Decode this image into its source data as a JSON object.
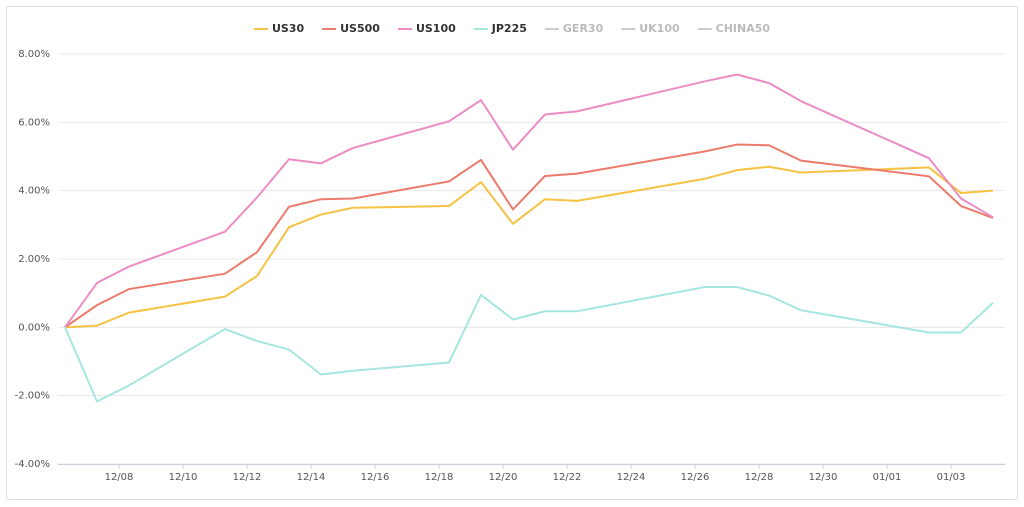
{
  "chart_data": {
    "type": "line",
    "x": [
      "12/06",
      "12/07",
      "12/08",
      "12/11",
      "12/12",
      "12/13",
      "12/14",
      "12/15",
      "12/18",
      "12/19",
      "12/20",
      "12/21",
      "12/22",
      "12/26",
      "12/27",
      "12/28",
      "12/29",
      "01/02",
      "01/03",
      "01/04"
    ],
    "series": [
      {
        "name": "US30",
        "color": "#f5c242",
        "values": [
          0,
          0.05,
          0.43,
          0.9,
          1.5,
          2.93,
          3.3,
          3.5,
          3.55,
          4.25,
          3.03,
          3.75,
          3.7,
          4.35,
          4.6,
          4.7,
          4.53,
          4.68,
          3.93,
          4.0
        ]
      },
      {
        "name": "US500",
        "color": "#ec7a6b",
        "values": [
          0,
          0.65,
          1.12,
          1.57,
          2.2,
          3.53,
          3.75,
          3.77,
          4.27,
          4.9,
          3.45,
          4.43,
          4.5,
          5.15,
          5.35,
          5.33,
          4.88,
          4.42,
          3.55,
          3.2
        ]
      },
      {
        "name": "US100",
        "color": "#ec8cc4",
        "values": [
          0,
          1.3,
          1.78,
          2.8,
          3.8,
          4.92,
          4.8,
          5.25,
          6.03,
          6.65,
          5.2,
          6.23,
          6.32,
          7.2,
          7.4,
          7.15,
          6.62,
          4.95,
          3.77,
          3.22
        ]
      },
      {
        "name": "JP225",
        "color": "#a6e6df",
        "values": [
          0,
          -2.17,
          -1.7,
          -0.05,
          -0.4,
          -0.65,
          -1.38,
          -1.27,
          -1.03,
          0.95,
          0.23,
          0.47,
          0.47,
          1.18,
          1.18,
          0.93,
          0.5,
          -0.15,
          -0.15,
          0.72
        ]
      },
      {
        "name": "GER30",
        "color": "#cccccc",
        "hidden": true,
        "values": [
          null,
          null,
          null,
          null,
          null,
          null,
          null,
          null,
          null,
          null,
          null,
          null,
          null,
          null,
          null,
          null,
          null,
          null,
          null,
          null
        ]
      },
      {
        "name": "UK100",
        "color": "#cccccc",
        "hidden": true,
        "values": [
          null,
          null,
          null,
          null,
          null,
          null,
          null,
          null,
          null,
          null,
          null,
          null,
          null,
          null,
          null,
          null,
          null,
          null,
          null,
          null
        ]
      },
      {
        "name": "CHINA50",
        "color": "#cccccc",
        "hidden": true,
        "values": [
          null,
          null,
          null,
          null,
          null,
          null,
          null,
          null,
          null,
          null,
          null,
          null,
          null,
          null,
          null,
          null,
          null,
          null,
          null,
          null
        ]
      }
    ],
    "xticks": [
      "12/08",
      "12/10",
      "12/12",
      "12/14",
      "12/16",
      "12/18",
      "12/20",
      "12/22",
      "12/24",
      "12/26",
      "12/28",
      "12/30",
      "01/01",
      "01/03"
    ],
    "ylim": [
      -4,
      8
    ],
    "yticks": [
      {
        "value": -4,
        "label": "-4.00%"
      },
      {
        "value": -2,
        "label": "-2.00%"
      },
      {
        "value": 0,
        "label": "0.00%"
      },
      {
        "value": 2,
        "label": "2.00%"
      },
      {
        "value": 4,
        "label": "4.00%"
      },
      {
        "value": 6,
        "label": "6.00%"
      },
      {
        "value": 8,
        "label": "8.00%"
      }
    ],
    "grid": true,
    "legend": "top"
  }
}
